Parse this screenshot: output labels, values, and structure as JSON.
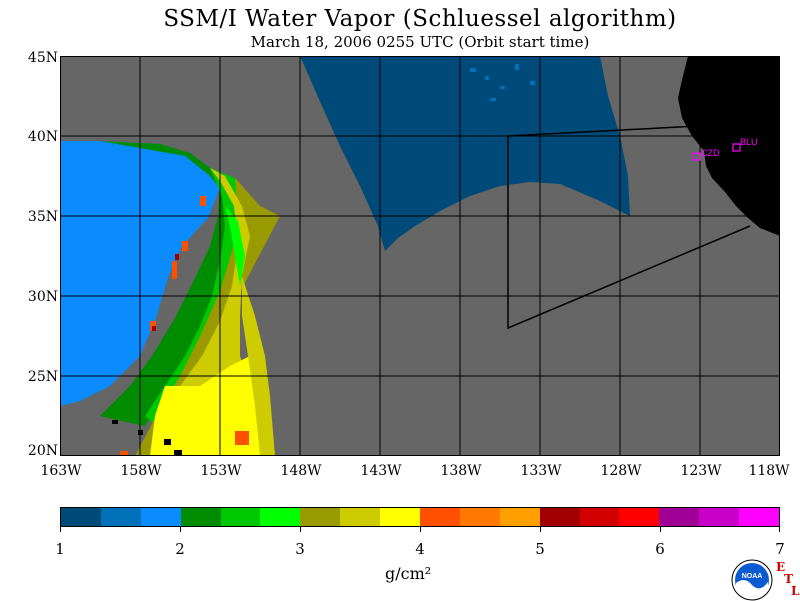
{
  "header": {
    "title": "SSM/I Water Vapor (Schluessel algorithm)",
    "subtitle": "March 18, 2006  0255 UTC  (Orbit start time)"
  },
  "map": {
    "lat_labels": [
      "45N",
      "40N",
      "35N",
      "30N",
      "25N",
      "20N"
    ],
    "lon_labels": [
      "163W",
      "158W",
      "153W",
      "148W",
      "143W",
      "138W",
      "133W",
      "128W",
      "123W",
      "118W"
    ],
    "lat_range": [
      20,
      45
    ],
    "lon_range": [
      -163,
      -118
    ],
    "stations": [
      {
        "label": "CZD",
        "lon": -123.1,
        "lat": 38.5
      },
      {
        "label": "BLU",
        "lon": -120.8,
        "lat": 39.3
      }
    ],
    "colors": {
      "no_data": "#666666",
      "land": "#000000",
      "grid": "#000000",
      "station": "#ff00ff"
    }
  },
  "colorbar": {
    "labels": [
      "1",
      "2",
      "3",
      "4",
      "5",
      "6",
      "7"
    ],
    "colors": [
      "#004a7a",
      "#0070b8",
      "#0a8cff",
      "#008c00",
      "#00c800",
      "#00ff00",
      "#999900",
      "#cccc00",
      "#ffff00",
      "#ff5000",
      "#ff7800",
      "#ffa000",
      "#a00000",
      "#d20000",
      "#ff0000",
      "#a00096",
      "#c800c8",
      "#ff00ff"
    ],
    "units": "g/cm²"
  },
  "logo": {
    "text": "NOAA",
    "corner_letters": [
      "E",
      "T",
      "L"
    ]
  }
}
